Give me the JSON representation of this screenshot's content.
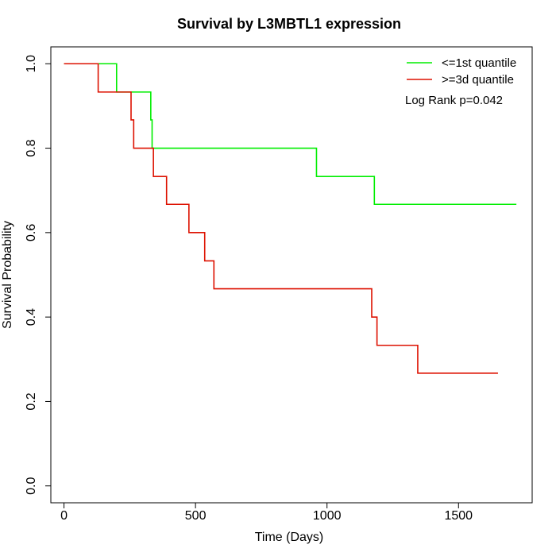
{
  "chart_data": {
    "type": "line",
    "title": "Survival by L3MBTL1 expression",
    "xlabel": "Time (Days)",
    "ylabel": "Survival Probability",
    "xlim": [
      -50,
      1780
    ],
    "ylim": [
      -0.04,
      1.04
    ],
    "x_ticks": [
      "0",
      "500",
      "1000",
      "1500"
    ],
    "x_tick_values": [
      0,
      500,
      1000,
      1500
    ],
    "y_ticks": [
      "0.0",
      "0.2",
      "0.4",
      "0.6",
      "0.8",
      "1.0"
    ],
    "y_tick_values": [
      0.0,
      0.2,
      0.4,
      0.6,
      0.8,
      1.0
    ],
    "annotation": "Log Rank p=0.042",
    "legend_position": "top-right",
    "grid": false,
    "series": [
      {
        "name": "<=1st quantile",
        "color": "#00ee00",
        "steps": [
          [
            0,
            1.0
          ],
          [
            200,
            0.933
          ],
          [
            330,
            0.867
          ],
          [
            335,
            0.8
          ],
          [
            960,
            0.733
          ],
          [
            1180,
            0.667
          ],
          [
            1720,
            0.667
          ]
        ]
      },
      {
        "name": ">=3d quantile",
        "color": "#dd1100",
        "steps": [
          [
            0,
            1.0
          ],
          [
            130,
            0.933
          ],
          [
            255,
            0.867
          ],
          [
            265,
            0.8
          ],
          [
            340,
            0.733
          ],
          [
            390,
            0.667
          ],
          [
            475,
            0.6
          ],
          [
            535,
            0.533
          ],
          [
            570,
            0.467
          ],
          [
            1170,
            0.4
          ],
          [
            1190,
            0.333
          ],
          [
            1345,
            0.267
          ],
          [
            1650,
            0.267
          ]
        ]
      }
    ]
  }
}
